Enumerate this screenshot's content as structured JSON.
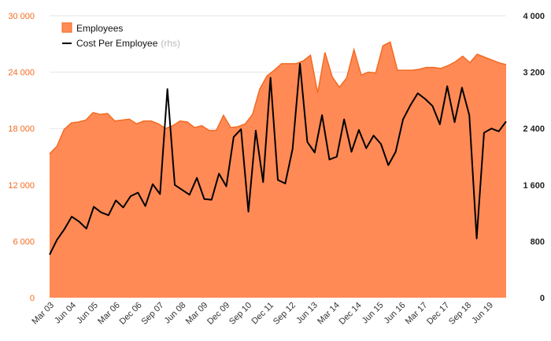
{
  "chart_data": {
    "type": "area+line",
    "colors": {
      "area_fill": "#ff8a55",
      "area_stroke": "#f26b21",
      "line": "#000000",
      "left_axis": "#f26b21",
      "right_axis": "#222222",
      "grid": "#e6e6e6"
    },
    "legend": {
      "placement": "top-left",
      "employees_label": "Employees",
      "cost_label": "Cost Per Employee",
      "cost_suffix": "(rhs)"
    },
    "left_axis": {
      "min": 0,
      "max": 30000,
      "ticks": [
        0,
        6000,
        12000,
        18000,
        24000,
        30000
      ],
      "tick_labels": [
        "0",
        "6 000",
        "12 000",
        "18 000",
        "24 000",
        "30 000"
      ]
    },
    "right_axis": {
      "min": 0,
      "max": 4000,
      "ticks": [
        0,
        800,
        1600,
        2400,
        3200,
        4000
      ],
      "tick_labels": [
        "0",
        "800",
        "1 600",
        "2 400",
        "3 200",
        "4 000"
      ]
    },
    "x_tick_labels": [
      "Mar 03",
      "Jun 04",
      "Jun 05",
      "Mar 06",
      "Dec 06",
      "Sep 07",
      "Jun 08",
      "Mar 09",
      "Dec 09",
      "Sep 10",
      "Dec 11",
      "Sep 12",
      "Jun 13",
      "Mar 14",
      "Dec 14",
      "Jun 15",
      "Jun 16",
      "Mar 17",
      "Dec 17",
      "Sep 18",
      "Jun 19"
    ],
    "series": [
      {
        "name": "Employees",
        "type": "area",
        "axis": "left",
        "values": [
          15300,
          16100,
          17900,
          18600,
          18700,
          18900,
          19700,
          19500,
          19600,
          18800,
          18900,
          19000,
          18500,
          18800,
          18800,
          18500,
          18000,
          18300,
          18800,
          18700,
          18100,
          18300,
          17800,
          17800,
          19400,
          18100,
          18200,
          18500,
          19500,
          22200,
          23600,
          24200,
          24900,
          24900,
          24900,
          25200,
          25800,
          21800,
          26100,
          23500,
          22400,
          23400,
          26400,
          23700,
          24000,
          23900,
          26800,
          27200,
          24200,
          24200,
          24200,
          24300,
          24500,
          24500,
          24400,
          24700,
          25100,
          25700,
          25000,
          25900,
          25600,
          25300,
          25000,
          24800
        ]
      },
      {
        "name": "Cost Per Employee",
        "type": "line",
        "axis": "right",
        "values": [
          610,
          820,
          970,
          1150,
          1080,
          980,
          1290,
          1210,
          1170,
          1380,
          1280,
          1440,
          1490,
          1300,
          1610,
          1470,
          2960,
          1600,
          1530,
          1460,
          1700,
          1400,
          1390,
          1760,
          1580,
          2280,
          2390,
          1220,
          2370,
          1640,
          3120,
          1670,
          1620,
          2110,
          3320,
          2210,
          2060,
          2590,
          1960,
          2000,
          2530,
          2070,
          2380,
          2120,
          2300,
          2180,
          1880,
          2070,
          2530,
          2730,
          2900,
          2820,
          2720,
          2460,
          3000,
          2490,
          2980,
          2590,
          840,
          2340,
          2400,
          2360,
          2500
        ]
      }
    ]
  }
}
